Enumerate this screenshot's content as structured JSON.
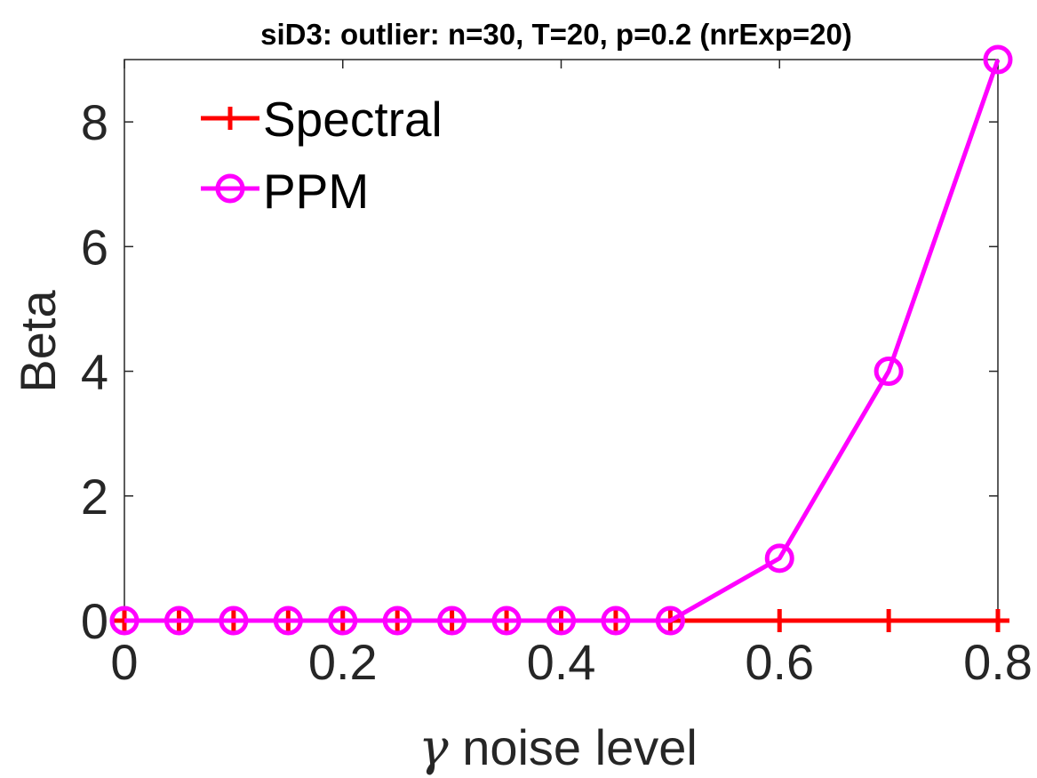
{
  "chart_data": {
    "type": "line",
    "title": "siD3: outlier: n=30, T=20, p=0.2 (nrExp=20)",
    "xlabel": {
      "symbol": "γ",
      "text": " noise level"
    },
    "ylabel": "Beta",
    "xlim": [
      0,
      0.8
    ],
    "ylim": [
      0,
      9
    ],
    "xticks": [
      0,
      0.2,
      0.4,
      0.6,
      0.8
    ],
    "xtick_labels": [
      "0",
      "0.2",
      "0.4",
      "0.6",
      "0.8"
    ],
    "yticks": [
      0,
      2,
      4,
      6,
      8
    ],
    "ytick_labels": [
      "0",
      "2",
      "4",
      "6",
      "8"
    ],
    "grid": false,
    "legend_position": "top-left",
    "x": [
      0,
      0.05,
      0.1,
      0.15,
      0.2,
      0.25,
      0.3,
      0.35,
      0.4,
      0.45,
      0.5,
      0.6,
      0.7,
      0.8
    ],
    "series": [
      {
        "name": "Spectral",
        "color": "#ff0000",
        "marker": "plus",
        "values": [
          0,
          0,
          0,
          0,
          0,
          0,
          0,
          0,
          0,
          0,
          0,
          0,
          0,
          0
        ]
      },
      {
        "name": "PPM",
        "color": "#ff00ff",
        "marker": "circle",
        "values": [
          0,
          0,
          0,
          0,
          0,
          0,
          0,
          0,
          0,
          0,
          0,
          1,
          4,
          9
        ]
      }
    ]
  }
}
